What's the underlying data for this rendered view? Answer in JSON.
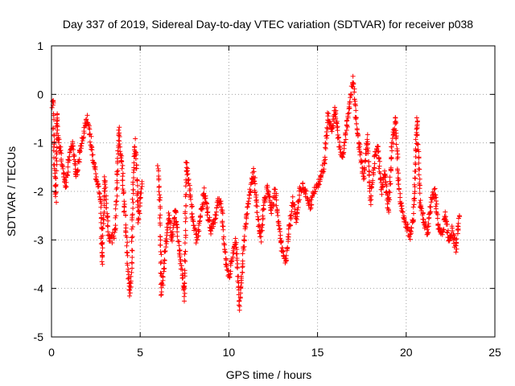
{
  "chart_data": {
    "type": "scatter",
    "title": "Day 337 of 2019, Sidereal Day-to-day VTEC variation (SDTVAR) for receiver p038",
    "xlabel": "GPS time / hours",
    "ylabel": "SDTVAR / TECUs",
    "xlim": [
      0,
      25
    ],
    "ylim": [
      -5,
      1
    ],
    "xticks": [
      "0",
      "5",
      "10",
      "15",
      "20",
      "25"
    ],
    "yticks": [
      "1",
      "0",
      "-1",
      "-2",
      "-3",
      "-4",
      "-5"
    ],
    "grid": true,
    "marker": "plus",
    "color": "#ff0000",
    "series": [
      {
        "name": "SDTVAR",
        "trace_points": [
          [
            0.05,
            -0.2
          ],
          [
            0.1,
            -0.1
          ],
          [
            0.15,
            -1.5
          ],
          [
            0.2,
            -1.7
          ],
          [
            0.25,
            -2.15
          ],
          [
            0.3,
            -0.4
          ],
          [
            0.35,
            -0.8
          ],
          [
            0.8,
            -1.9
          ],
          [
            1.0,
            -1.3
          ],
          [
            1.2,
            -1.0
          ],
          [
            1.4,
            -1.7
          ],
          [
            1.6,
            -1.2
          ],
          [
            1.8,
            -0.8
          ],
          [
            2.0,
            -0.5
          ],
          [
            2.2,
            -0.9
          ],
          [
            2.4,
            -1.5
          ],
          [
            2.6,
            -1.8
          ],
          [
            2.8,
            -2.3
          ],
          [
            2.85,
            -3.5
          ],
          [
            3.0,
            -1.7
          ],
          [
            3.2,
            -2.9
          ],
          [
            3.4,
            -3.0
          ],
          [
            3.6,
            -2.8
          ],
          [
            3.8,
            -0.7
          ],
          [
            3.9,
            -1.2
          ],
          [
            4.0,
            -1.6
          ],
          [
            4.1,
            -2.3
          ],
          [
            4.2,
            -2.8
          ],
          [
            4.3,
            -3.5
          ],
          [
            4.4,
            -4.1
          ],
          [
            4.5,
            -3.8
          ],
          [
            4.6,
            -2.0
          ],
          [
            4.7,
            -1.0
          ],
          [
            4.8,
            -1.6
          ],
          [
            4.9,
            -2.6
          ],
          [
            5.0,
            -2.2
          ],
          [
            5.1,
            -1.8
          ],
          [
            6.0,
            -1.5
          ],
          [
            6.1,
            -2.1
          ],
          [
            6.2,
            -4.1
          ],
          [
            6.6,
            -2.5
          ],
          [
            6.8,
            -3.0
          ],
          [
            7.0,
            -2.4
          ],
          [
            7.2,
            -3.2
          ],
          [
            7.4,
            -3.8
          ],
          [
            7.5,
            -4.2
          ],
          [
            7.6,
            -1.4
          ],
          [
            7.8,
            -2.0
          ],
          [
            8.0,
            -2.7
          ],
          [
            8.2,
            -3.0
          ],
          [
            8.4,
            -2.5
          ],
          [
            8.6,
            -2.0
          ],
          [
            8.8,
            -2.4
          ],
          [
            9.0,
            -2.8
          ],
          [
            9.2,
            -2.6
          ],
          [
            9.4,
            -2.2
          ],
          [
            9.6,
            -2.3
          ],
          [
            9.8,
            -3.4
          ],
          [
            10.0,
            -3.8
          ],
          [
            10.2,
            -3.3
          ],
          [
            10.4,
            -3.0
          ],
          [
            10.6,
            -4.4
          ],
          [
            10.8,
            -3.3
          ],
          [
            11.0,
            -2.5
          ],
          [
            11.2,
            -2.0
          ],
          [
            11.4,
            -1.6
          ],
          [
            11.6,
            -2.4
          ],
          [
            11.8,
            -3.0
          ],
          [
            12.0,
            -2.2
          ],
          [
            12.2,
            -1.9
          ],
          [
            12.4,
            -2.4
          ],
          [
            12.6,
            -2.0
          ],
          [
            12.8,
            -2.6
          ],
          [
            13.0,
            -3.2
          ],
          [
            13.2,
            -3.5
          ],
          [
            13.4,
            -2.8
          ],
          [
            13.6,
            -2.2
          ],
          [
            13.8,
            -2.6
          ],
          [
            14.0,
            -2.0
          ],
          [
            14.2,
            -1.9
          ],
          [
            14.4,
            -2.1
          ],
          [
            14.6,
            -2.3
          ],
          [
            14.8,
            -2.0
          ],
          [
            15.0,
            -1.9
          ],
          [
            15.2,
            -1.7
          ],
          [
            15.4,
            -1.4
          ],
          [
            15.6,
            -0.4
          ],
          [
            15.8,
            -0.8
          ],
          [
            16.0,
            -0.3
          ],
          [
            16.2,
            -1.0
          ],
          [
            16.4,
            -1.3
          ],
          [
            16.6,
            -0.8
          ],
          [
            16.8,
            -0.2
          ],
          [
            17.0,
            0.3
          ],
          [
            17.2,
            -0.6
          ],
          [
            17.4,
            -1.2
          ],
          [
            17.6,
            -1.7
          ],
          [
            17.8,
            -0.9
          ],
          [
            18.0,
            -2.2
          ],
          [
            18.2,
            -1.4
          ],
          [
            18.4,
            -1.0
          ],
          [
            18.6,
            -2.0
          ],
          [
            18.8,
            -1.6
          ],
          [
            19.0,
            -2.4
          ],
          [
            19.2,
            -1.0
          ],
          [
            19.4,
            -0.5
          ],
          [
            19.6,
            -2.0
          ],
          [
            19.8,
            -2.5
          ],
          [
            20.0,
            -2.7
          ],
          [
            20.2,
            -2.9
          ],
          [
            20.4,
            -2.6
          ],
          [
            20.6,
            -0.5
          ],
          [
            20.8,
            -2.3
          ],
          [
            21.0,
            -2.6
          ],
          [
            21.2,
            -2.9
          ],
          [
            21.4,
            -2.2
          ],
          [
            21.6,
            -2.0
          ],
          [
            21.8,
            -2.7
          ],
          [
            22.0,
            -2.9
          ],
          [
            22.2,
            -2.5
          ],
          [
            22.4,
            -3.0
          ],
          [
            22.6,
            -2.8
          ],
          [
            22.8,
            -3.2
          ],
          [
            23.0,
            -2.5
          ]
        ]
      }
    ]
  }
}
